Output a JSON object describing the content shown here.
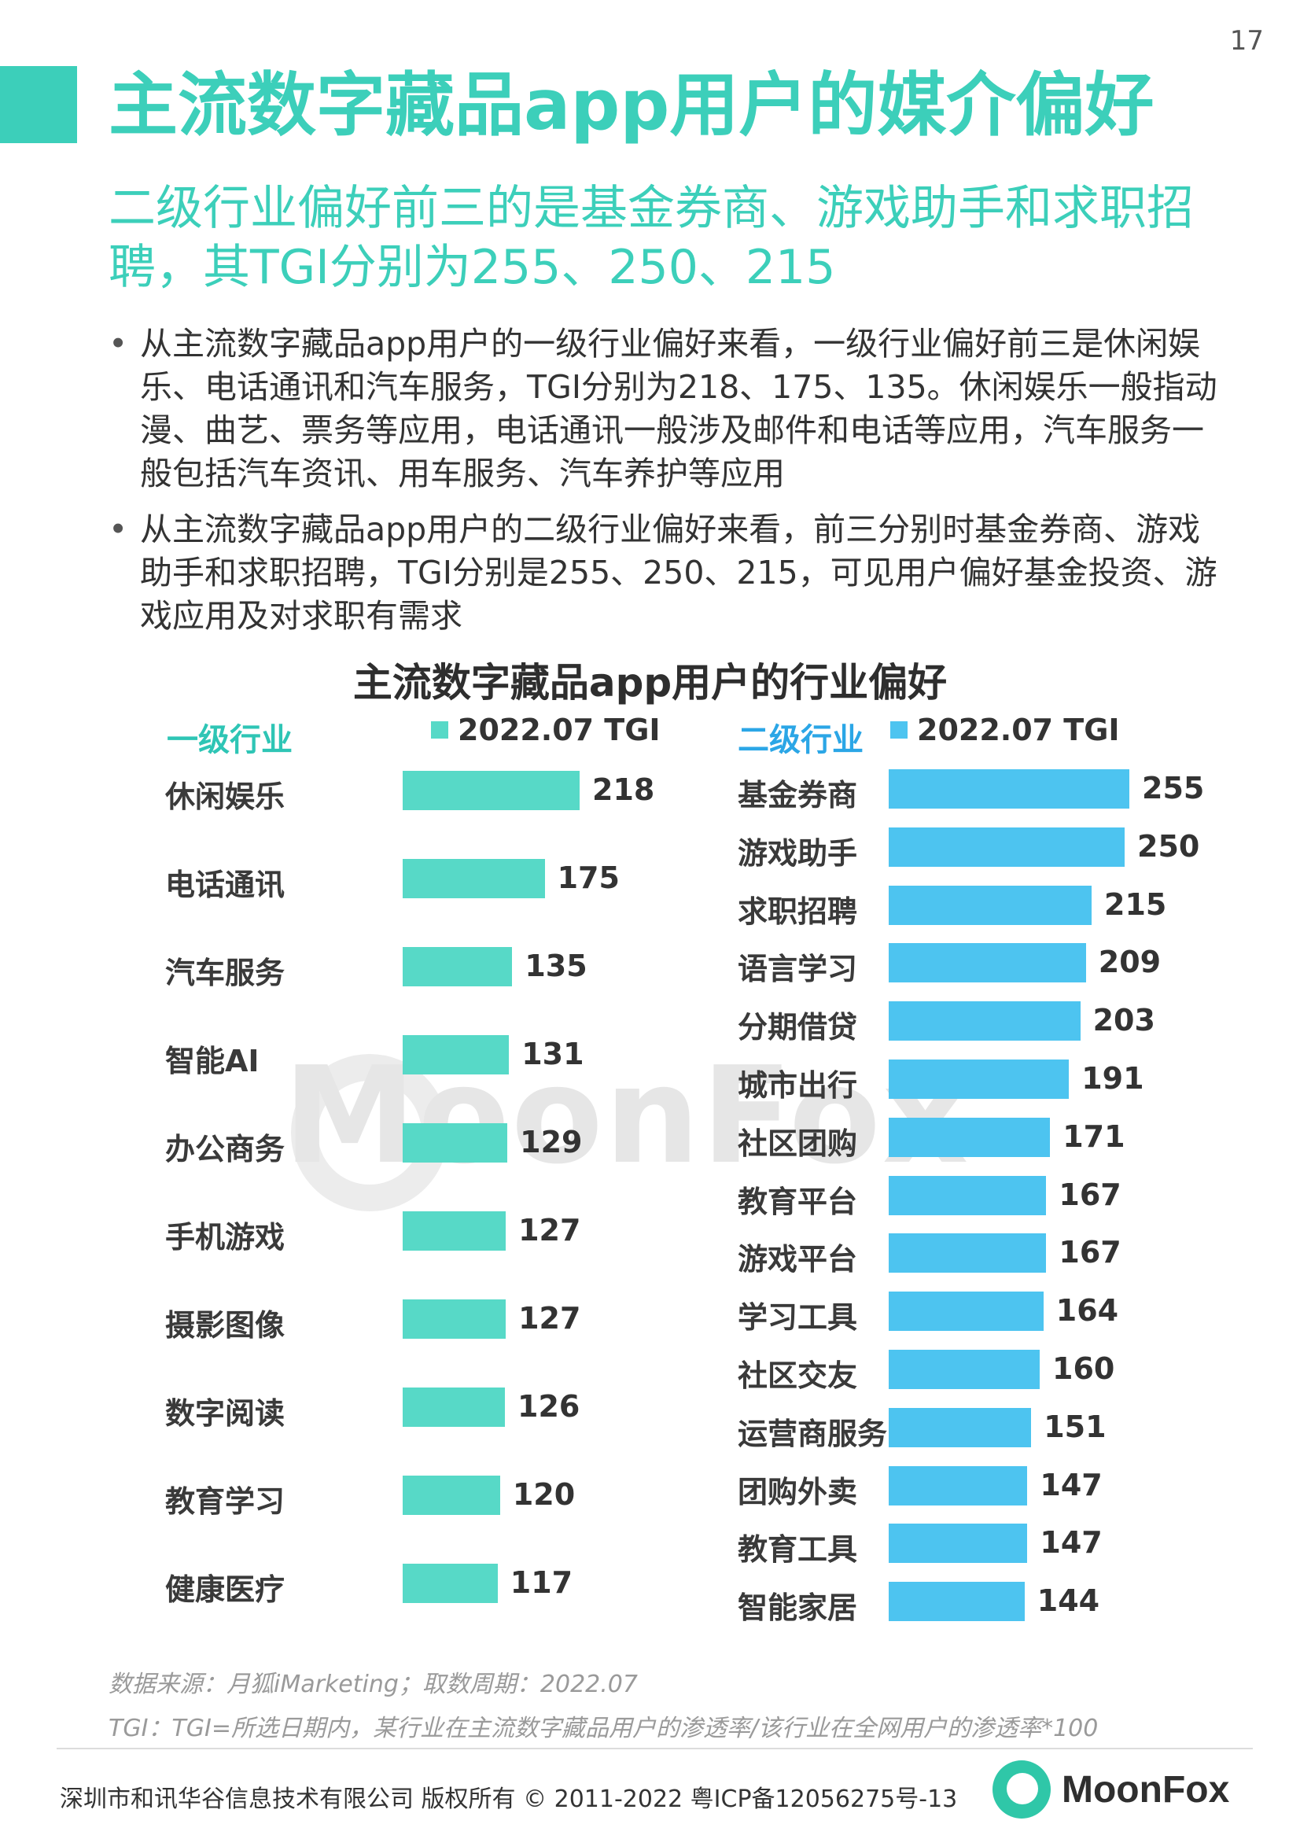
{
  "page_number": "17",
  "title": "主流数字藏品app用户的媒介偏好",
  "subtitle": "二级行业偏好前三的是基金券商、游戏助手和求职招聘，其TGI分别为255、250、215",
  "bullets": [
    "从主流数字藏品app用户的一级行业偏好来看，一级行业偏好前三是休闲娱乐、电话通讯和汽车服务，TGI分别为218、175、135。休闲娱乐一般指动漫、曲艺、票务等应用，电话通讯一般涉及邮件和电话等应用，汽车服务一般包括汽车资讯、用车服务、汽车养护等应用",
    "从主流数字藏品app用户的二级行业偏好来看，前三分别时基金券商、游戏助手和求职招聘，TGI分别是255、250、215，可见用户偏好基金投资、游戏应用及对求职有需求"
  ],
  "watermark": "MoonFox",
  "source": "数据来源：月狐iMarketing；取数周期：2022.07",
  "note": "TGI：TGI=所选日期内，某行业在主流数字藏品用户的渗透率/该行业在全网用户的渗透率*100",
  "footer": "深圳市和讯华谷信息技术有限公司 版权所有 © 2011-2022 粤ICP备12056275号-13",
  "logo_text": "MoonFox",
  "chart_data": [
    {
      "type": "bar",
      "orientation": "horizontal",
      "title": "主流数字藏品app用户的行业偏好",
      "panel_label": "一级行业",
      "legend": "2022.07 TGI",
      "color": "#57d9c7",
      "label_color": "#2ec5b5",
      "categories": [
        "休闲娱乐",
        "电话通讯",
        "汽车服务",
        "智能AI",
        "办公商务",
        "手机游戏",
        "摄影图像",
        "数字阅读",
        "教育学习",
        "健康医疗"
      ],
      "values": [
        218,
        175,
        135,
        131,
        129,
        127,
        127,
        126,
        120,
        117
      ]
    },
    {
      "type": "bar",
      "orientation": "horizontal",
      "panel_label": "二级行业",
      "legend": "2022.07 TGI",
      "color": "#4dc4f0",
      "label_color": "#2ba6e6",
      "categories": [
        "基金券商",
        "游戏助手",
        "求职招聘",
        "语言学习",
        "分期借贷",
        "城市出行",
        "社区团购",
        "教育平台",
        "游戏平台",
        "学习工具",
        "社区交友",
        "运营商服务",
        "团购外卖",
        "教育工具",
        "智能家居"
      ],
      "values": [
        255,
        250,
        215,
        209,
        203,
        191,
        171,
        167,
        167,
        164,
        160,
        151,
        147,
        147,
        144
      ]
    }
  ]
}
